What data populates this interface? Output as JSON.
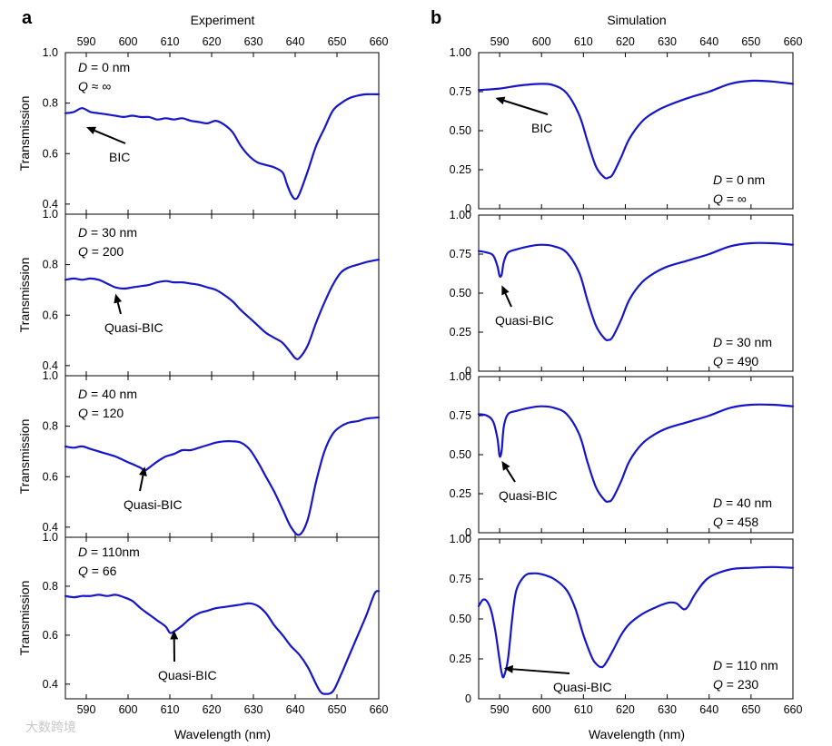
{
  "figure": {
    "panel_a_label": "a",
    "panel_b_label": "b",
    "watermark_text": "大数跨境",
    "colors": {
      "curve": "#1616c8",
      "axis": "#000000"
    }
  },
  "chart_data": [
    {
      "type": "line",
      "id": "exp-0",
      "column_title": "Experiment",
      "xlim": [
        585,
        660
      ],
      "ylim": [
        0.36,
        1.0
      ],
      "yticks": [
        0.4,
        0.6,
        0.8,
        1.0
      ],
      "ytick_labels": [
        "0.4",
        "0.6",
        "0.8",
        "1.0"
      ],
      "xticks": [
        590,
        600,
        610,
        620,
        630,
        640,
        650,
        660
      ],
      "ylabel": "Transmission",
      "annotation": {
        "d_label": "D",
        "d_value": " = 0 nm",
        "q_label": "Q",
        "q_value": " ≈ ∞"
      },
      "arrow_label": "BIC",
      "arrow_target": [
        590,
        0.705
      ],
      "x": [
        585,
        587,
        589,
        591,
        593,
        595,
        597,
        599,
        601,
        603,
        605,
        607,
        609,
        611,
        613,
        615,
        617,
        619,
        621,
        623,
        625,
        627,
        629,
        631,
        633,
        635,
        637,
        638,
        639,
        640,
        641,
        643,
        645,
        647,
        649,
        651,
        653,
        655,
        657,
        660
      ],
      "y": [
        0.76,
        0.765,
        0.78,
        0.765,
        0.76,
        0.755,
        0.75,
        0.745,
        0.75,
        0.745,
        0.745,
        0.735,
        0.74,
        0.735,
        0.74,
        0.73,
        0.725,
        0.72,
        0.73,
        0.715,
        0.685,
        0.63,
        0.59,
        0.565,
        0.555,
        0.545,
        0.525,
        0.48,
        0.44,
        0.42,
        0.44,
        0.53,
        0.63,
        0.7,
        0.77,
        0.8,
        0.82,
        0.83,
        0.835,
        0.835
      ]
    },
    {
      "type": "line",
      "id": "exp-1",
      "xlim": [
        585,
        660
      ],
      "ylim": [
        0.36,
        1.0
      ],
      "yticks": [
        0.4,
        0.6,
        0.8,
        1.0
      ],
      "ytick_labels": [
        "0.4",
        "0.6",
        "0.8",
        "1.0"
      ],
      "ylabel": "Transmission",
      "annotation": {
        "d_label": "D",
        "d_value": " = 30 nm",
        "q_label": "Q",
        "q_value": " = 200"
      },
      "arrow_label": "Quasi-BIC",
      "arrow_target": [
        597,
        0.685
      ],
      "x": [
        585,
        587,
        589,
        591,
        593,
        595,
        597,
        599,
        601,
        603,
        605,
        607,
        609,
        611,
        613,
        615,
        617,
        619,
        621,
        623,
        625,
        627,
        629,
        631,
        633,
        635,
        637,
        639,
        640,
        641,
        643,
        645,
        647,
        649,
        651,
        653,
        655,
        657,
        660
      ],
      "y": [
        0.74,
        0.745,
        0.74,
        0.745,
        0.74,
        0.725,
        0.71,
        0.705,
        0.71,
        0.715,
        0.72,
        0.73,
        0.735,
        0.73,
        0.73,
        0.725,
        0.72,
        0.71,
        0.7,
        0.68,
        0.655,
        0.62,
        0.59,
        0.56,
        0.53,
        0.51,
        0.49,
        0.45,
        0.43,
        0.43,
        0.48,
        0.57,
        0.65,
        0.72,
        0.77,
        0.79,
        0.8,
        0.81,
        0.82
      ]
    },
    {
      "type": "line",
      "id": "exp-2",
      "xlim": [
        585,
        660
      ],
      "ylim": [
        0.36,
        1.0
      ],
      "yticks": [
        0.4,
        0.6,
        0.8,
        1.0
      ],
      "ytick_labels": [
        "0.4",
        "0.6",
        "0.8",
        "1.0"
      ],
      "ylabel": "Transmission",
      "annotation": {
        "d_label": "D",
        "d_value": " = 40 nm",
        "q_label": "Q",
        "q_value": " = 120"
      },
      "arrow_label": "Quasi-BIC",
      "arrow_target": [
        604,
        0.64
      ],
      "x": [
        585,
        587,
        589,
        591,
        593,
        595,
        597,
        599,
        601,
        603,
        604,
        605,
        607,
        609,
        611,
        613,
        615,
        617,
        619,
        621,
        623,
        625,
        627,
        629,
        631,
        633,
        635,
        637,
        639,
        641,
        643,
        645,
        647,
        649,
        651,
        653,
        655,
        657,
        660
      ],
      "y": [
        0.72,
        0.715,
        0.72,
        0.71,
        0.7,
        0.69,
        0.68,
        0.665,
        0.65,
        0.635,
        0.625,
        0.635,
        0.66,
        0.68,
        0.69,
        0.705,
        0.705,
        0.715,
        0.725,
        0.735,
        0.74,
        0.74,
        0.735,
        0.71,
        0.66,
        0.6,
        0.54,
        0.47,
        0.4,
        0.37,
        0.43,
        0.58,
        0.7,
        0.77,
        0.8,
        0.815,
        0.82,
        0.83,
        0.835
      ]
    },
    {
      "type": "line",
      "id": "exp-3",
      "xlim": [
        585,
        660
      ],
      "ylim": [
        0.34,
        1.0
      ],
      "yticks": [
        0.4,
        0.6,
        0.8,
        1.0
      ],
      "ytick_labels": [
        "0.4",
        "0.6",
        "0.8",
        "1.0"
      ],
      "xlabel": "Wavelength (nm)",
      "ylabel": "Transmission",
      "xticks": [
        590,
        600,
        610,
        620,
        630,
        640,
        650,
        660
      ],
      "annotation": {
        "d_label": "D",
        "d_value": " = 110nm",
        "q_label": "Q",
        "q_value": " = 66"
      },
      "arrow_label": "Quasi-BIC",
      "arrow_target": [
        611,
        0.62
      ],
      "x": [
        585,
        587,
        589,
        591,
        593,
        595,
        597,
        599,
        601,
        603,
        605,
        607,
        609,
        610,
        611,
        613,
        615,
        617,
        619,
        621,
        623,
        625,
        627,
        629,
        631,
        633,
        635,
        637,
        639,
        641,
        643,
        645,
        646,
        647,
        649,
        651,
        653,
        655,
        657,
        659,
        660
      ],
      "y": [
        0.76,
        0.755,
        0.76,
        0.76,
        0.765,
        0.76,
        0.765,
        0.755,
        0.74,
        0.71,
        0.685,
        0.66,
        0.635,
        0.61,
        0.615,
        0.64,
        0.67,
        0.69,
        0.7,
        0.71,
        0.715,
        0.72,
        0.725,
        0.73,
        0.72,
        0.69,
        0.64,
        0.6,
        0.555,
        0.52,
        0.47,
        0.4,
        0.37,
        0.36,
        0.37,
        0.44,
        0.52,
        0.6,
        0.68,
        0.77,
        0.78
      ]
    },
    {
      "type": "line",
      "id": "sim-0",
      "column_title": "Simulation",
      "xlim": [
        585,
        660
      ],
      "ylim": [
        0,
        1.0
      ],
      "yticks": [
        0,
        0.25,
        0.5,
        0.75,
        1.0
      ],
      "ytick_labels": [
        "0",
        "0.25",
        "0.50",
        "0.75",
        "1.00"
      ],
      "xticks": [
        590,
        600,
        610,
        620,
        630,
        640,
        650,
        660
      ],
      "annotation": {
        "d_label": "D",
        "d_value": " = 0 nm",
        "q_label": "Q",
        "q_value": " = ∞"
      },
      "arrow_label": "BIC",
      "arrow_target": [
        589,
        0.71
      ],
      "x": [
        585,
        590,
        595,
        600,
        603,
        606,
        609,
        611,
        613,
        615,
        616,
        617,
        619,
        621,
        624,
        627,
        630,
        635,
        640,
        645,
        650,
        655,
        660
      ],
      "y": [
        0.76,
        0.77,
        0.79,
        0.8,
        0.79,
        0.74,
        0.6,
        0.43,
        0.27,
        0.2,
        0.2,
        0.22,
        0.33,
        0.45,
        0.56,
        0.62,
        0.66,
        0.71,
        0.75,
        0.8,
        0.82,
        0.815,
        0.8
      ]
    },
    {
      "type": "line",
      "id": "sim-1",
      "xlim": [
        585,
        660
      ],
      "ylim": [
        0,
        1.0
      ],
      "yticks": [
        0,
        0.25,
        0.5,
        0.75,
        1.0
      ],
      "ytick_labels": [
        "0",
        "0.25",
        "0.50",
        "0.75",
        "1.00"
      ],
      "annotation": {
        "d_label": "D",
        "d_value": " = 30 nm",
        "q_label": "Q",
        "q_value": " = 490"
      },
      "arrow_label": "Quasi-BIC",
      "arrow_target": [
        590.5,
        0.55
      ],
      "x": [
        585,
        587,
        588.5,
        589.5,
        590,
        590.5,
        591,
        592,
        594,
        597,
        600,
        603,
        606,
        609,
        611,
        613,
        615,
        616,
        617,
        619,
        621,
        624,
        627,
        630,
        635,
        640,
        645,
        650,
        655,
        660
      ],
      "y": [
        0.77,
        0.76,
        0.74,
        0.67,
        0.61,
        0.62,
        0.7,
        0.76,
        0.78,
        0.8,
        0.81,
        0.8,
        0.76,
        0.63,
        0.45,
        0.29,
        0.21,
        0.2,
        0.22,
        0.33,
        0.46,
        0.57,
        0.63,
        0.67,
        0.71,
        0.75,
        0.8,
        0.82,
        0.82,
        0.81
      ]
    },
    {
      "type": "line",
      "id": "sim-2",
      "xlim": [
        585,
        660
      ],
      "ylim": [
        0,
        1.0
      ],
      "yticks": [
        0,
        0.25,
        0.5,
        0.75,
        1.0
      ],
      "ytick_labels": [
        "0",
        "0.25",
        "0.50",
        "0.75",
        "1.00"
      ],
      "annotation": {
        "d_label": "D",
        "d_value": " = 40 nm",
        "q_label": "Q",
        "q_value": " = 458"
      },
      "arrow_label": "Quasi-BIC",
      "arrow_target": [
        590.5,
        0.46
      ],
      "x": [
        585,
        587,
        588.5,
        589.5,
        590,
        590.5,
        591,
        592,
        594,
        597,
        600,
        603,
        606,
        609,
        611,
        613,
        615,
        616,
        617,
        619,
        621,
        624,
        627,
        630,
        635,
        640,
        645,
        650,
        655,
        660
      ],
      "y": [
        0.76,
        0.75,
        0.71,
        0.6,
        0.49,
        0.53,
        0.68,
        0.76,
        0.78,
        0.8,
        0.81,
        0.8,
        0.76,
        0.63,
        0.45,
        0.29,
        0.21,
        0.2,
        0.22,
        0.33,
        0.46,
        0.57,
        0.63,
        0.67,
        0.71,
        0.75,
        0.8,
        0.82,
        0.82,
        0.81
      ]
    },
    {
      "type": "line",
      "id": "sim-3",
      "xlim": [
        585,
        660
      ],
      "ylim": [
        0,
        1.0
      ],
      "yticks": [
        0,
        0.25,
        0.5,
        0.75,
        1.0
      ],
      "ytick_labels": [
        "0",
        "0.25",
        "0.50",
        "0.75",
        "1.00"
      ],
      "xticks": [
        590,
        600,
        610,
        620,
        630,
        640,
        650,
        660
      ],
      "xlabel": "Wavelength (nm)",
      "annotation": {
        "d_label": "D",
        "d_value": " = 110 nm",
        "q_label": "Q",
        "q_value": " = 230"
      },
      "arrow_label": "Quasi-BIC",
      "arrow_target": [
        591,
        0.19
      ],
      "x": [
        585,
        586,
        587,
        588,
        589,
        590,
        590.5,
        591,
        592,
        593,
        594,
        596,
        598,
        600,
        603,
        606,
        608,
        610,
        612,
        613,
        614,
        615,
        617,
        619,
        621,
        624,
        627,
        630,
        632,
        633,
        634,
        635,
        637,
        640,
        645,
        650,
        655,
        660
      ],
      "y": [
        0.58,
        0.62,
        0.61,
        0.55,
        0.42,
        0.24,
        0.16,
        0.14,
        0.25,
        0.5,
        0.68,
        0.77,
        0.785,
        0.78,
        0.75,
        0.68,
        0.57,
        0.4,
        0.26,
        0.22,
        0.2,
        0.21,
        0.3,
        0.4,
        0.47,
        0.53,
        0.57,
        0.6,
        0.6,
        0.58,
        0.56,
        0.58,
        0.67,
        0.76,
        0.81,
        0.82,
        0.825,
        0.82
      ]
    }
  ]
}
